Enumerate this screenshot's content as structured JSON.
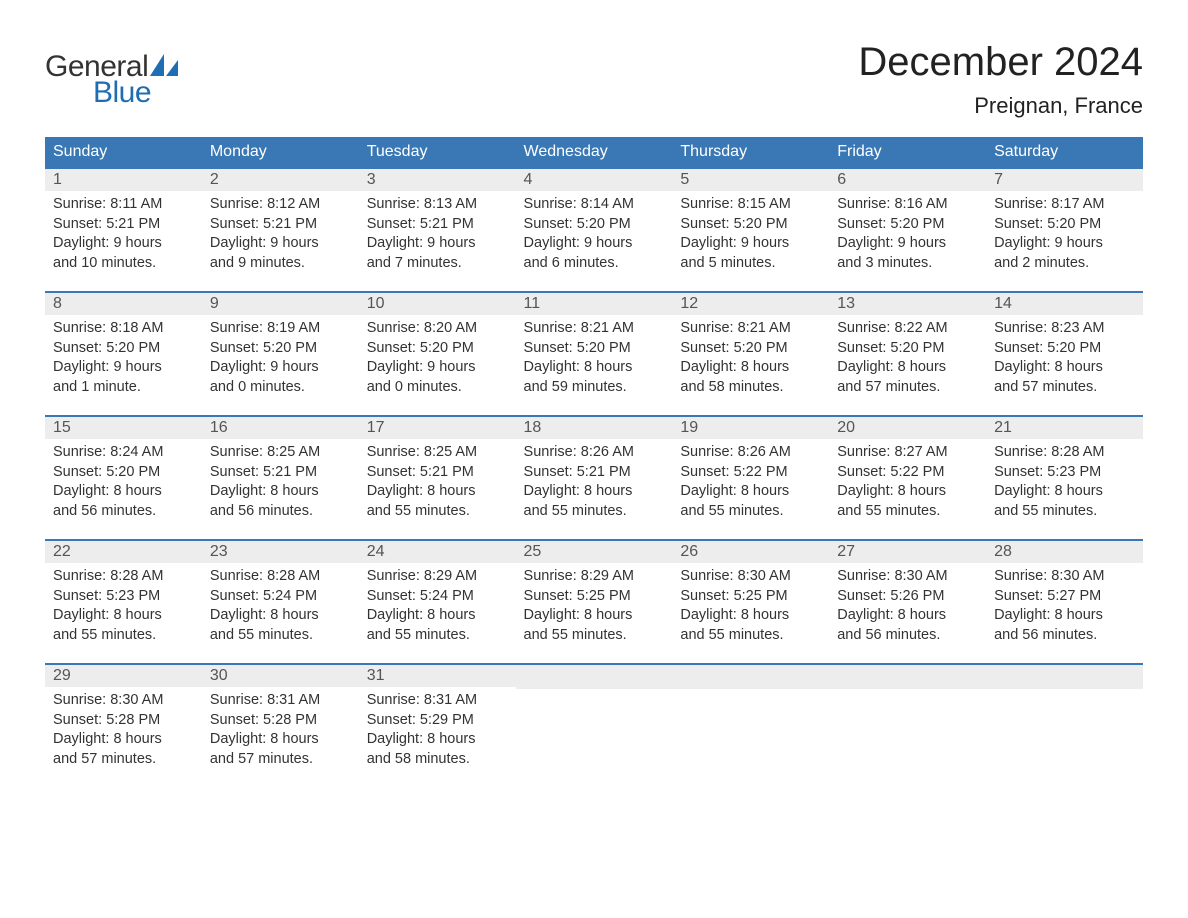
{
  "logo": {
    "text1": "General",
    "text2": "Blue",
    "sail_color": "#1f6db2"
  },
  "title": "December 2024",
  "location": "Preignan, France",
  "colors": {
    "header_bg": "#3a78b5",
    "header_text": "#ffffff",
    "daynum_bg": "#ededed",
    "daynum_text": "#555555",
    "body_text": "#333333",
    "row_border": "#3a78b5",
    "page_bg": "#ffffff"
  },
  "weekdays": [
    "Sunday",
    "Monday",
    "Tuesday",
    "Wednesday",
    "Thursday",
    "Friday",
    "Saturday"
  ],
  "weeks": [
    [
      {
        "n": "1",
        "sunrise": "Sunrise: 8:11 AM",
        "sunset": "Sunset: 5:21 PM",
        "d1": "Daylight: 9 hours",
        "d2": "and 10 minutes."
      },
      {
        "n": "2",
        "sunrise": "Sunrise: 8:12 AM",
        "sunset": "Sunset: 5:21 PM",
        "d1": "Daylight: 9 hours",
        "d2": "and 9 minutes."
      },
      {
        "n": "3",
        "sunrise": "Sunrise: 8:13 AM",
        "sunset": "Sunset: 5:21 PM",
        "d1": "Daylight: 9 hours",
        "d2": "and 7 minutes."
      },
      {
        "n": "4",
        "sunrise": "Sunrise: 8:14 AM",
        "sunset": "Sunset: 5:20 PM",
        "d1": "Daylight: 9 hours",
        "d2": "and 6 minutes."
      },
      {
        "n": "5",
        "sunrise": "Sunrise: 8:15 AM",
        "sunset": "Sunset: 5:20 PM",
        "d1": "Daylight: 9 hours",
        "d2": "and 5 minutes."
      },
      {
        "n": "6",
        "sunrise": "Sunrise: 8:16 AM",
        "sunset": "Sunset: 5:20 PM",
        "d1": "Daylight: 9 hours",
        "d2": "and 3 minutes."
      },
      {
        "n": "7",
        "sunrise": "Sunrise: 8:17 AM",
        "sunset": "Sunset: 5:20 PM",
        "d1": "Daylight: 9 hours",
        "d2": "and 2 minutes."
      }
    ],
    [
      {
        "n": "8",
        "sunrise": "Sunrise: 8:18 AM",
        "sunset": "Sunset: 5:20 PM",
        "d1": "Daylight: 9 hours",
        "d2": "and 1 minute."
      },
      {
        "n": "9",
        "sunrise": "Sunrise: 8:19 AM",
        "sunset": "Sunset: 5:20 PM",
        "d1": "Daylight: 9 hours",
        "d2": "and 0 minutes."
      },
      {
        "n": "10",
        "sunrise": "Sunrise: 8:20 AM",
        "sunset": "Sunset: 5:20 PM",
        "d1": "Daylight: 9 hours",
        "d2": "and 0 minutes."
      },
      {
        "n": "11",
        "sunrise": "Sunrise: 8:21 AM",
        "sunset": "Sunset: 5:20 PM",
        "d1": "Daylight: 8 hours",
        "d2": "and 59 minutes."
      },
      {
        "n": "12",
        "sunrise": "Sunrise: 8:21 AM",
        "sunset": "Sunset: 5:20 PM",
        "d1": "Daylight: 8 hours",
        "d2": "and 58 minutes."
      },
      {
        "n": "13",
        "sunrise": "Sunrise: 8:22 AM",
        "sunset": "Sunset: 5:20 PM",
        "d1": "Daylight: 8 hours",
        "d2": "and 57 minutes."
      },
      {
        "n": "14",
        "sunrise": "Sunrise: 8:23 AM",
        "sunset": "Sunset: 5:20 PM",
        "d1": "Daylight: 8 hours",
        "d2": "and 57 minutes."
      }
    ],
    [
      {
        "n": "15",
        "sunrise": "Sunrise: 8:24 AM",
        "sunset": "Sunset: 5:20 PM",
        "d1": "Daylight: 8 hours",
        "d2": "and 56 minutes."
      },
      {
        "n": "16",
        "sunrise": "Sunrise: 8:25 AM",
        "sunset": "Sunset: 5:21 PM",
        "d1": "Daylight: 8 hours",
        "d2": "and 56 minutes."
      },
      {
        "n": "17",
        "sunrise": "Sunrise: 8:25 AM",
        "sunset": "Sunset: 5:21 PM",
        "d1": "Daylight: 8 hours",
        "d2": "and 55 minutes."
      },
      {
        "n": "18",
        "sunrise": "Sunrise: 8:26 AM",
        "sunset": "Sunset: 5:21 PM",
        "d1": "Daylight: 8 hours",
        "d2": "and 55 minutes."
      },
      {
        "n": "19",
        "sunrise": "Sunrise: 8:26 AM",
        "sunset": "Sunset: 5:22 PM",
        "d1": "Daylight: 8 hours",
        "d2": "and 55 minutes."
      },
      {
        "n": "20",
        "sunrise": "Sunrise: 8:27 AM",
        "sunset": "Sunset: 5:22 PM",
        "d1": "Daylight: 8 hours",
        "d2": "and 55 minutes."
      },
      {
        "n": "21",
        "sunrise": "Sunrise: 8:28 AM",
        "sunset": "Sunset: 5:23 PM",
        "d1": "Daylight: 8 hours",
        "d2": "and 55 minutes."
      }
    ],
    [
      {
        "n": "22",
        "sunrise": "Sunrise: 8:28 AM",
        "sunset": "Sunset: 5:23 PM",
        "d1": "Daylight: 8 hours",
        "d2": "and 55 minutes."
      },
      {
        "n": "23",
        "sunrise": "Sunrise: 8:28 AM",
        "sunset": "Sunset: 5:24 PM",
        "d1": "Daylight: 8 hours",
        "d2": "and 55 minutes."
      },
      {
        "n": "24",
        "sunrise": "Sunrise: 8:29 AM",
        "sunset": "Sunset: 5:24 PM",
        "d1": "Daylight: 8 hours",
        "d2": "and 55 minutes."
      },
      {
        "n": "25",
        "sunrise": "Sunrise: 8:29 AM",
        "sunset": "Sunset: 5:25 PM",
        "d1": "Daylight: 8 hours",
        "d2": "and 55 minutes."
      },
      {
        "n": "26",
        "sunrise": "Sunrise: 8:30 AM",
        "sunset": "Sunset: 5:25 PM",
        "d1": "Daylight: 8 hours",
        "d2": "and 55 minutes."
      },
      {
        "n": "27",
        "sunrise": "Sunrise: 8:30 AM",
        "sunset": "Sunset: 5:26 PM",
        "d1": "Daylight: 8 hours",
        "d2": "and 56 minutes."
      },
      {
        "n": "28",
        "sunrise": "Sunrise: 8:30 AM",
        "sunset": "Sunset: 5:27 PM",
        "d1": "Daylight: 8 hours",
        "d2": "and 56 minutes."
      }
    ],
    [
      {
        "n": "29",
        "sunrise": "Sunrise: 8:30 AM",
        "sunset": "Sunset: 5:28 PM",
        "d1": "Daylight: 8 hours",
        "d2": "and 57 minutes."
      },
      {
        "n": "30",
        "sunrise": "Sunrise: 8:31 AM",
        "sunset": "Sunset: 5:28 PM",
        "d1": "Daylight: 8 hours",
        "d2": "and 57 minutes."
      },
      {
        "n": "31",
        "sunrise": "Sunrise: 8:31 AM",
        "sunset": "Sunset: 5:29 PM",
        "d1": "Daylight: 8 hours",
        "d2": "and 58 minutes."
      },
      null,
      null,
      null,
      null
    ]
  ]
}
